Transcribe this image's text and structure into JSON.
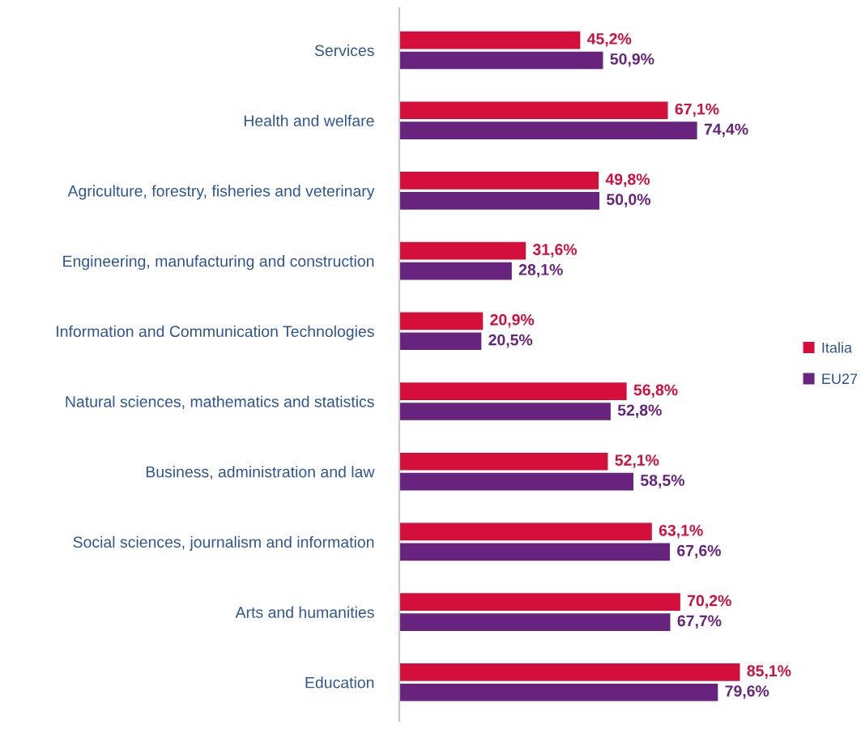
{
  "chart_data": {
    "type": "bar",
    "orientation": "horizontal",
    "legend": "right",
    "grid": false,
    "categories": [
      "Services",
      "Health and welfare",
      "Agriculture, forestry, fisheries and veterinary",
      "Engineering, manufacturing and construction",
      "Information and Communication Technologies",
      "Natural sciences, mathematics and statistics",
      "Business, administration and law",
      "Social sciences, journalism and information",
      "Arts and humanities",
      "Education"
    ],
    "series": [
      {
        "name": "Italia",
        "color": "#d50f3c",
        "values": [
          45.2,
          67.1,
          49.8,
          31.6,
          20.9,
          56.8,
          52.1,
          63.1,
          70.2,
          85.1
        ],
        "value_labels": [
          "45,2%",
          "67,1%",
          "49,8%",
          "31,6%",
          "20,9%",
          "56,8%",
          "52,1%",
          "63,1%",
          "70,2%",
          "85,1%"
        ]
      },
      {
        "name": "EU27",
        "color": "#68237f",
        "values": [
          50.9,
          74.4,
          50.0,
          28.1,
          20.5,
          52.8,
          58.5,
          67.6,
          67.7,
          79.6
        ],
        "value_labels": [
          "50,9%",
          "74,4%",
          "50,0%",
          "28,1%",
          "20,5%",
          "52,8%",
          "58,5%",
          "67,6%",
          "67,7%",
          "79,6%"
        ]
      }
    ]
  }
}
